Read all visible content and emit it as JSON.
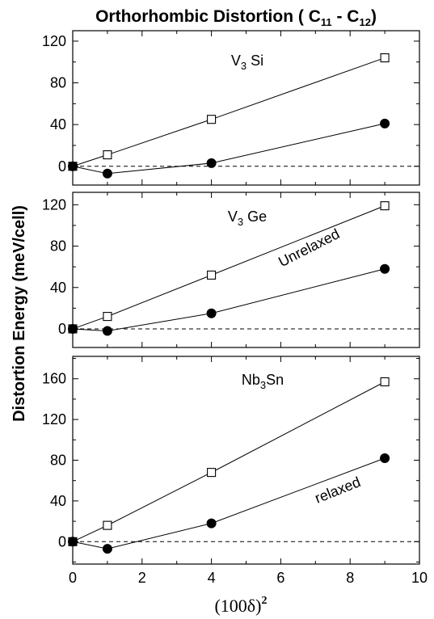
{
  "title_parts": [
    "Orthorhombic Distortion ( C",
    "11",
    " - C",
    "12",
    ")"
  ],
  "ylabel": "Distortion Energy (meV/cell)",
  "xlabel_parts": [
    "(100δ)",
    "2"
  ],
  "annotations": {
    "unrelaxed": "Unrelaxed",
    "relaxed": "relaxed"
  },
  "chart_data": [
    {
      "type": "line",
      "panel_label_parts": [
        "V",
        "3",
        " Si"
      ],
      "xlim": [
        0,
        10
      ],
      "ylim": [
        -18,
        130
      ],
      "yticks": [
        0,
        40,
        80,
        120
      ],
      "yminor": [
        -20,
        20,
        60,
        100
      ],
      "xticks": [
        0,
        2,
        4,
        6,
        8,
        10
      ],
      "series": [
        {
          "marker": "open-square",
          "x": [
            0,
            1,
            4,
            9
          ],
          "y": [
            0,
            11,
            45,
            104
          ]
        },
        {
          "marker": "filled-circle",
          "x": [
            0,
            1,
            4,
            9
          ],
          "y": [
            0,
            -7,
            3,
            41
          ]
        }
      ]
    },
    {
      "type": "line",
      "panel_label_parts": [
        "V",
        "3",
        " Ge"
      ],
      "xlim": [
        0,
        10
      ],
      "ylim": [
        -18,
        132
      ],
      "yticks": [
        0,
        40,
        80,
        120
      ],
      "yminor": [
        -20,
        20,
        60,
        100
      ],
      "xticks": [
        0,
        2,
        4,
        6,
        8,
        10
      ],
      "series": [
        {
          "marker": "open-square",
          "x": [
            0,
            1,
            4,
            9
          ],
          "y": [
            0,
            12,
            52,
            119
          ]
        },
        {
          "marker": "filled-circle",
          "x": [
            0,
            1,
            4,
            9
          ],
          "y": [
            0,
            -2,
            15,
            58
          ]
        }
      ]
    },
    {
      "type": "line",
      "panel_label_parts": [
        "Nb",
        "3",
        "Sn"
      ],
      "xlim": [
        0,
        10
      ],
      "ylim": [
        -22,
        182
      ],
      "yticks": [
        0,
        40,
        80,
        120,
        160
      ],
      "yminor": [
        -20,
        20,
        60,
        100,
        140,
        180
      ],
      "xticks": [
        0,
        2,
        4,
        6,
        8,
        10
      ],
      "series": [
        {
          "marker": "open-square",
          "x": [
            0,
            1,
            4,
            9
          ],
          "y": [
            0,
            16,
            68,
            157
          ]
        },
        {
          "marker": "filled-circle",
          "x": [
            0,
            1,
            4,
            9
          ],
          "y": [
            0,
            -7,
            18,
            82
          ]
        }
      ]
    }
  ]
}
